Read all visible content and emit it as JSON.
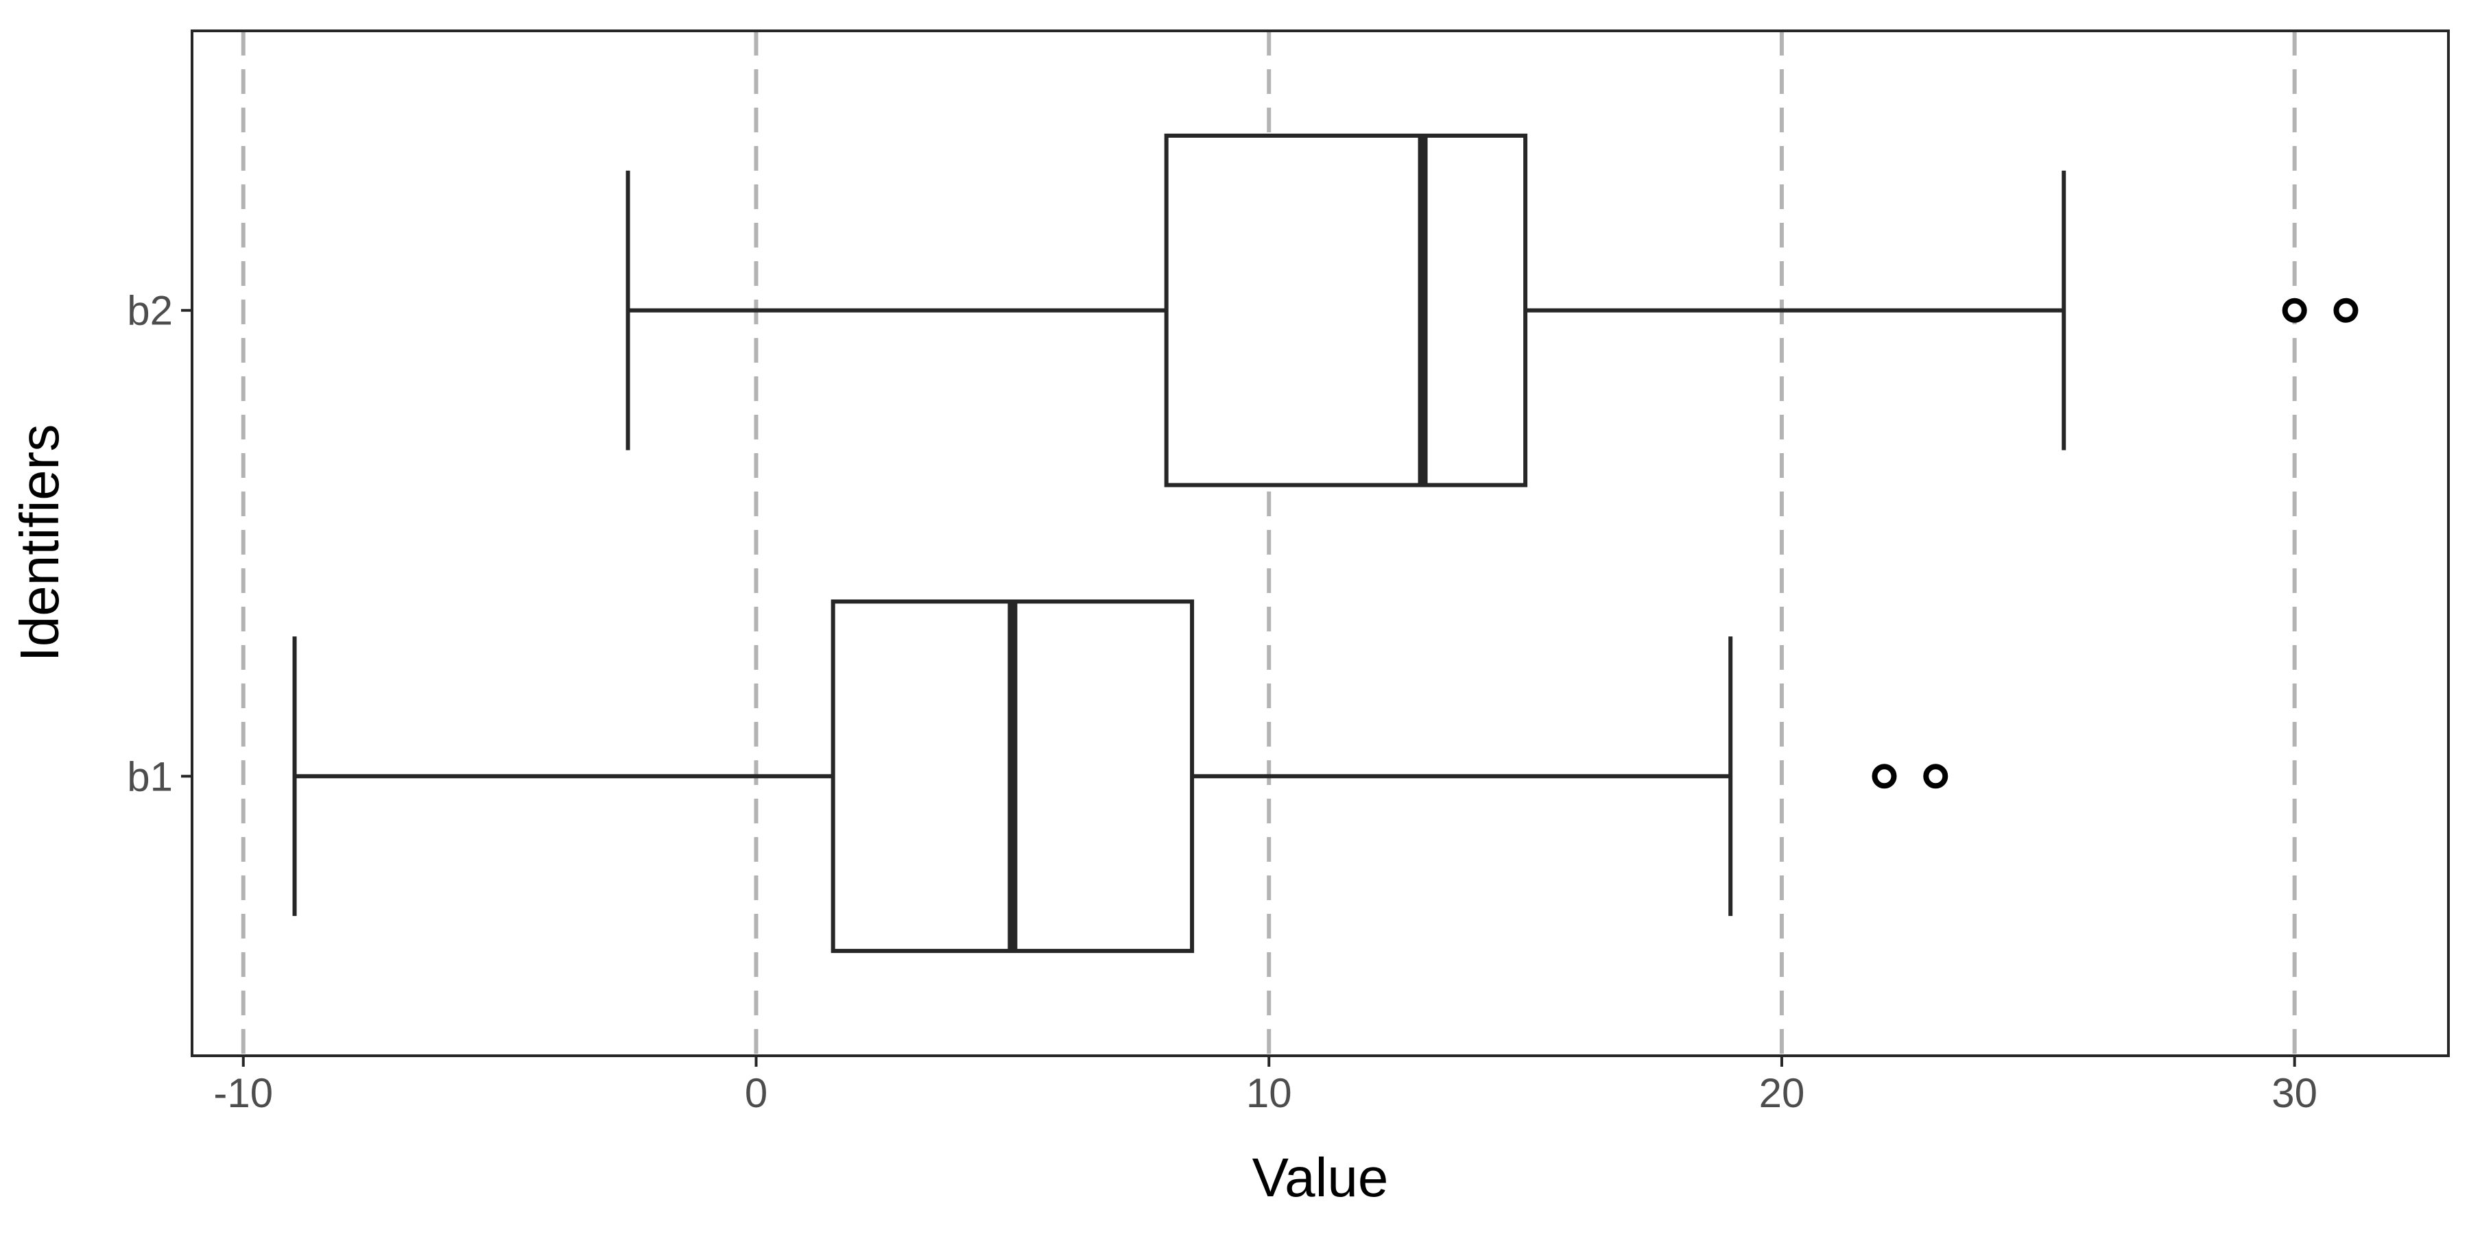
{
  "chart_data": {
    "type": "boxplot",
    "orientation": "horizontal",
    "title": "",
    "xlabel": "Value",
    "ylabel": "Identifiers",
    "xlim": [
      -11,
      33
    ],
    "x_ticks": [
      -10,
      0,
      10,
      20,
      30
    ],
    "categories": [
      "b1",
      "b2"
    ],
    "grid": "vertical dashed at major ticks",
    "legend": "none",
    "series": [
      {
        "category": "b1",
        "whisker_low": -9,
        "q1": 1.5,
        "median": 5,
        "q3": 8.5,
        "whisker_high": 19,
        "outliers": [
          22,
          23
        ]
      },
      {
        "category": "b2",
        "whisker_low": -2.5,
        "q1": 8,
        "median": 13,
        "q3": 15,
        "whisker_high": 25.5,
        "outliers": [
          30,
          31
        ]
      }
    ],
    "colors": {
      "box_stroke": "#262626",
      "grid": "#b3b3b3",
      "panel_border": "#262626",
      "box_fill": "#ffffff"
    }
  }
}
